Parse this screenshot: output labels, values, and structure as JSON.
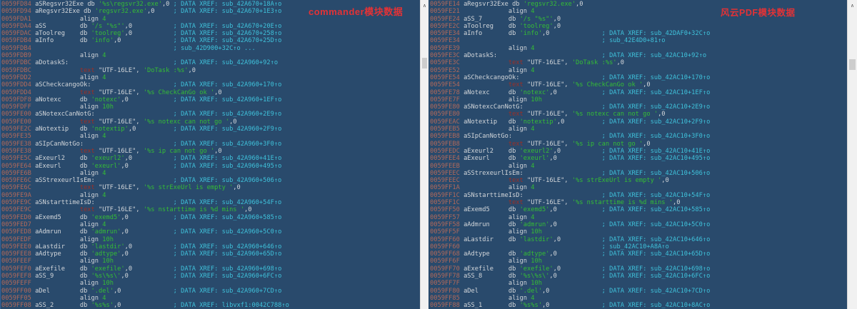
{
  "colors": {
    "bg": "#294a6c",
    "addr": "#b1695a",
    "txt": "#d2d6da",
    "str": "#35bd35",
    "cmt": "#3fc1da",
    "kw": "#9c2f26",
    "red": "#e33236",
    "sbtrack": "#f1f1f1",
    "sbthumb": "#cdcdcd"
  },
  "tokens": {
    "db": "db ",
    "align": "align ",
    "text": "text",
    "utf": " \"UTF-16LE\", ",
    "nul": ",0"
  },
  "icons": {
    "chevron_up": "∧"
  },
  "panels": [
    {
      "annotation": "commander模块数据",
      "lines": [
        {
          "a": "0059FD84",
          "n": "aSRegsvr32Exe",
          "d": "db",
          "s": "'%s\\regsvr32.exe'",
          "x": "; DATA XREF: sub_42A670+18A↑o"
        },
        {
          "a": "0059FD94",
          "n": "aRegsvr32Exe",
          "d": "db",
          "s": "'regsvr32.exe'",
          "x": "; DATA XREF: sub_42A670+1E3↑o"
        },
        {
          "a": "0059FDA1",
          "d": "align",
          "v": "4"
        },
        {
          "a": "0059FDA4",
          "n": "aSS",
          "d": "db",
          "s": "'/s \"%s\"'",
          "x": "; DATA XREF: sub_42A670+20E↑o"
        },
        {
          "a": "0059FDAC",
          "n": "aToolreg",
          "d": "db",
          "s": "'toolreg'",
          "x": "; DATA XREF: sub_42A670+258↑o"
        },
        {
          "a": "0059FDB4",
          "n": "aInfo",
          "d": "db",
          "s": "'info'",
          "x": "; DATA XREF: sub_42A670+25D↑o"
        },
        {
          "a": "0059FDB4",
          "x": "; sub_42D900+32C↑o ..."
        },
        {
          "a": "0059FDB9",
          "d": "align",
          "v": "4"
        },
        {
          "a": "0059FDBC",
          "l": "aDotaskS:",
          "x": "; DATA XREF: sub_42A960+92↑o"
        },
        {
          "a": "0059FDBC",
          "u": "'DoTask :%s'"
        },
        {
          "a": "0059FDD2",
          "d": "align",
          "v": "4"
        },
        {
          "a": "0059FDD4",
          "l": "aSCheckcangoOk:",
          "x": "; DATA XREF: sub_42A960+170↑o"
        },
        {
          "a": "0059FDD4",
          "u": "'%s CheckCanGo ok '"
        },
        {
          "a": "0059FDF8",
          "n": "aNotexc",
          "d": "db",
          "s": "'notexc'",
          "x": "; DATA XREF: sub_42A960+1EF↑o"
        },
        {
          "a": "0059FDFF",
          "d": "align",
          "v": "10h"
        },
        {
          "a": "0059FE00",
          "l": "aSNotexcCanNotG:",
          "x": "; DATA XREF: sub_42A960+2E9↑o"
        },
        {
          "a": "0059FE00",
          "u": "'%s notexc can not go '"
        },
        {
          "a": "0059FE2C",
          "n": "aNotextip",
          "d": "db",
          "s": "'notextip'",
          "x": "; DATA XREF: sub_42A960+2F9↑o"
        },
        {
          "a": "0059FE35",
          "d": "align",
          "v": "4"
        },
        {
          "a": "0059FE38",
          "l": "aSIpCanNotGo:",
          "x": "; DATA XREF: sub_42A960+3F0↑o"
        },
        {
          "a": "0059FE38",
          "u": "'%s ip can not go '"
        },
        {
          "a": "0059FE5C",
          "n": "aExeurl2",
          "d": "db",
          "s": "'exeurl2'",
          "x": "; DATA XREF: sub_42A960+41E↑o"
        },
        {
          "a": "0059FE64",
          "n": "aExeurl",
          "d": "db",
          "s": "'exeurl'",
          "x": "; DATA XREF: sub_42A960+495↑o"
        },
        {
          "a": "0059FE6B",
          "d": "align",
          "v": "4"
        },
        {
          "a": "0059FE6C",
          "l": "aSStrexeurlIsEm:",
          "x": "; DATA XREF: sub_42A960+506↑o"
        },
        {
          "a": "0059FE6C",
          "u": "'%s strExeUrl is empty '"
        },
        {
          "a": "0059FE9A",
          "d": "align",
          "v": "4"
        },
        {
          "a": "0059FE9C",
          "l": "aSNstarttimeIsD:",
          "x": "; DATA XREF: sub_42A960+54F↑o"
        },
        {
          "a": "0059FE9C",
          "u": "'%s nstarttime is %d mins '"
        },
        {
          "a": "0059FED0",
          "n": "aExemd5",
          "d": "db",
          "s": "'exemd5'",
          "x": "; DATA XREF: sub_42A960+585↑o"
        },
        {
          "a": "0059FED7",
          "d": "align",
          "v": "4"
        },
        {
          "a": "0059FED8",
          "n": "aAdmrun",
          "d": "db",
          "s": "'admrun'",
          "x": "; DATA XREF: sub_42A960+5C0↑o"
        },
        {
          "a": "0059FEDF",
          "d": "align",
          "v": "10h"
        },
        {
          "a": "0059FEE0",
          "n": "aLastdir",
          "d": "db",
          "s": "'lastdir'",
          "x": "; DATA XREF: sub_42A960+646↑o"
        },
        {
          "a": "0059FEE8",
          "n": "aAdtype",
          "d": "db",
          "s": "'adtype'",
          "x": "; DATA XREF: sub_42A960+65D↑o"
        },
        {
          "a": "0059FEEF",
          "d": "align",
          "v": "10h"
        },
        {
          "a": "0059FEF0",
          "n": "aExefile",
          "d": "db",
          "s": "'exefile'",
          "x": "; DATA XREF: sub_42A960+698↑o"
        },
        {
          "a": "0059FEF8",
          "n": "aSS_9",
          "d": "db",
          "s": "'%s\\%s\\'",
          "x": "; DATA XREF: sub_42A960+6FC↑o"
        },
        {
          "a": "0059FEFF",
          "d": "align",
          "v": "10h"
        },
        {
          "a": "0059FF00",
          "n": "aDel",
          "d": "db",
          "s": "'.del'",
          "x": "; DATA XREF: sub_42A960+7CD↑o"
        },
        {
          "a": "0059FF05",
          "d": "align",
          "v": "4"
        },
        {
          "a": "0059FF08",
          "n": "aSS_2",
          "d": "db",
          "s": "'%s%s'",
          "x": "; DATA XREF: libvxf1:0042C788↑o"
        }
      ]
    },
    {
      "annotation": "风云PDF模块数据",
      "lines": [
        {
          "a": "0059FE14",
          "n": "aRegsvr32Exe",
          "d": "db",
          "s": "'regsvr32.exe'"
        },
        {
          "a": "0059FE21",
          "d": "align",
          "v": "4"
        },
        {
          "a": "0059FE24",
          "n": "aSS_7",
          "d": "db",
          "s": "'/s \"%s\"'"
        },
        {
          "a": "0059FE2C",
          "n": "aToolreg",
          "d": "db",
          "s": "'toolreg'"
        },
        {
          "a": "0059FE34",
          "n": "aInfo",
          "d": "db",
          "s": "'info'",
          "x": "; DATA XREF: sub_42DAF0+32C↑o"
        },
        {
          "a": "0059FE34",
          "x": "; sub_42E4D0+81↑o"
        },
        {
          "a": "0059FE39",
          "d": "align",
          "v": "4"
        },
        {
          "a": "0059FE3C",
          "l": "aDotaskS:",
          "x": "; DATA XREF: sub_42AC10+92↑o"
        },
        {
          "a": "0059FE3C",
          "u": "'DoTask :%s'"
        },
        {
          "a": "0059FE52",
          "d": "align",
          "v": "4"
        },
        {
          "a": "0059FE54",
          "l": "aSCheckcangoOk:",
          "x": "; DATA XREF: sub_42AC10+170↑o"
        },
        {
          "a": "0059FE54",
          "u": "'%s CheckCanGo ok '"
        },
        {
          "a": "0059FE78",
          "n": "aNotexc",
          "d": "db",
          "s": "'notexc'",
          "x": "; DATA XREF: sub_42AC10+1EF↑o"
        },
        {
          "a": "0059FE7F",
          "d": "align",
          "v": "10h"
        },
        {
          "a": "0059FE80",
          "l": "aSNotexcCanNotG:",
          "x": "; DATA XREF: sub_42AC10+2E9↑o"
        },
        {
          "a": "0059FE80",
          "u": "'%s notexc can not go '"
        },
        {
          "a": "0059FEAC",
          "n": "aNotextip",
          "d": "db",
          "s": "'notextip'",
          "x": "; DATA XREF: sub_42AC10+2F9↑o"
        },
        {
          "a": "0059FEB5",
          "d": "align",
          "v": "4"
        },
        {
          "a": "0059FEB8",
          "l": "aSIpCanNotGo:",
          "x": "; DATA XREF: sub_42AC10+3F0↑o"
        },
        {
          "a": "0059FEB8",
          "u": "'%s ip can not go '"
        },
        {
          "a": "0059FEDC",
          "n": "aExeurl2",
          "d": "db",
          "s": "'exeurl2'",
          "x": "; DATA XREF: sub_42AC10+41E↑o"
        },
        {
          "a": "0059FEE4",
          "n": "aExeurl",
          "d": "db",
          "s": "'exeurl'",
          "x": "; DATA XREF: sub_42AC10+495↑o"
        },
        {
          "a": "0059FEEB",
          "d": "align",
          "v": "4"
        },
        {
          "a": "0059FEEC",
          "l": "aSStrexeurlIsEm:",
          "x": "; DATA XREF: sub_42AC10+506↑o"
        },
        {
          "a": "0059FEEC",
          "u": "'%s strExeUrl is empty '"
        },
        {
          "a": "0059FF1A",
          "d": "align",
          "v": "4"
        },
        {
          "a": "0059FF1C",
          "l": "aSNstarttimeIsD:",
          "x": "; DATA XREF: sub_42AC10+54F↑o"
        },
        {
          "a": "0059FF1C",
          "u": "'%s nstarttime is %d mins '"
        },
        {
          "a": "0059FF50",
          "n": "aExemd5",
          "d": "db",
          "s": "'exemd5'",
          "x": "; DATA XREF: sub_42AC10+585↑o"
        },
        {
          "a": "0059FF57",
          "d": "align",
          "v": "4"
        },
        {
          "a": "0059FF58",
          "n": "aAdmrun",
          "d": "db",
          "s": "'admrun'",
          "x": "; DATA XREF: sub_42AC10+5C0↑o"
        },
        {
          "a": "0059FF5F",
          "d": "align",
          "v": "10h"
        },
        {
          "a": "0059FF60",
          "n": "aLastdir",
          "d": "db",
          "s": "'lastdir'",
          "x": "; DATA XREF: sub_42AC10+646↑o"
        },
        {
          "a": "0059FF60",
          "x": "; sub_42AC10+A8A↑o"
        },
        {
          "a": "0059FF68",
          "n": "aAdtype",
          "d": "db",
          "s": "'adtype'",
          "x": "; DATA XREF: sub_42AC10+65D↑o"
        },
        {
          "a": "0059FF6F",
          "d": "align",
          "v": "10h"
        },
        {
          "a": "0059FF70",
          "n": "aExefile",
          "d": "db",
          "s": "'exefile'",
          "x": "; DATA XREF: sub_42AC10+698↑o"
        },
        {
          "a": "0059FF78",
          "n": "aSS_8",
          "d": "db",
          "s": "'%s\\%s\\'",
          "x": "; DATA XREF: sub_42AC10+6FC↑o"
        },
        {
          "a": "0059FF7F",
          "d": "align",
          "v": "10h"
        },
        {
          "a": "0059FF80",
          "n": "aDel",
          "d": "db",
          "s": "'.del'",
          "x": "; DATA XREF: sub_42AC10+7CD↑o"
        },
        {
          "a": "0059FF85",
          "d": "align",
          "v": "4"
        },
        {
          "a": "0059FF88",
          "n": "aSS_1",
          "d": "db",
          "s": "'%s%s'",
          "x": "; DATA XREF: sub_42AC10+8AC↑o"
        }
      ]
    }
  ]
}
